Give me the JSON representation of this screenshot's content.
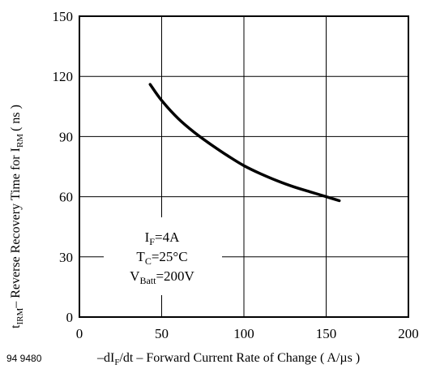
{
  "chart_data": {
    "type": "line",
    "figure_id": "94 9480",
    "xlabel": {
      "prefix": "–dI",
      "sub": "F",
      "suffix": "/dt – Forward Current Rate of Change ( A/µs )"
    },
    "ylabel": {
      "t": "t",
      "t_sub": "IRM",
      "middle": "– Reverse Recovery Time for I",
      "i_sub": "RM",
      "end": "( ns )"
    },
    "xlim": [
      0,
      200
    ],
    "ylim": [
      0,
      150
    ],
    "x_ticks": [
      "0",
      "50",
      "100",
      "150",
      "200"
    ],
    "y_ticks": [
      "0",
      "30",
      "60",
      "90",
      "120",
      "150"
    ],
    "grid": true,
    "annotation": [
      {
        "main": "I",
        "sub": "F",
        "rest": "=4A"
      },
      {
        "main": "T",
        "sub": "C",
        "rest": "=25°C"
      },
      {
        "main": "V",
        "sub": "Batt",
        "rest": "=200V"
      }
    ],
    "series": [
      {
        "x": [
          43,
          50,
          60,
          70,
          80,
          90,
          100,
          110,
          120,
          130,
          140,
          150,
          158
        ],
        "y": [
          116,
          108,
          99,
          92,
          86,
          80.5,
          75.5,
          71.5,
          68,
          65,
          62.5,
          60,
          58
        ]
      }
    ]
  }
}
